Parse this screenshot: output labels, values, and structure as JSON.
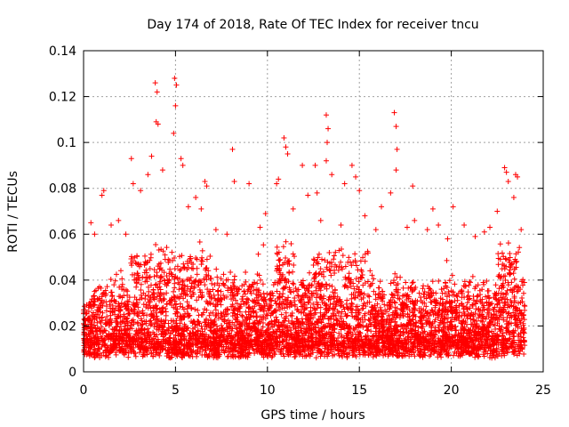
{
  "chart_data": {
    "type": "scatter",
    "title": "Day 174 of 2018, Rate Of TEC Index for receiver tncu",
    "xlabel": "GPS time / hours",
    "ylabel": "ROTI / TECUs",
    "xlim": [
      0,
      25
    ],
    "ylim": [
      0,
      0.14
    ],
    "xticks": [
      0,
      5,
      10,
      15,
      20,
      25
    ],
    "yticks": [
      0,
      0.02,
      0.04,
      0.06,
      0.08,
      0.1,
      0.12,
      0.14
    ],
    "xtick_labels": [
      "0",
      "5",
      "10",
      "15",
      "20",
      "25"
    ],
    "ytick_labels": [
      "0",
      "0.02",
      "0.04",
      "0.06",
      "0.08",
      "0.1",
      "0.12",
      "0.14"
    ],
    "grid": true,
    "marker": "+",
    "marker_color": "#ff0000",
    "data_range_x": [
      0,
      24
    ],
    "series": [
      {
        "points": [
          [
            3.9,
            0.126
          ],
          [
            4.0,
            0.122
          ],
          [
            4.95,
            0.128
          ],
          [
            5.05,
            0.125
          ],
          [
            5.0,
            0.116
          ],
          [
            4.9,
            0.104
          ],
          [
            3.95,
            0.109
          ],
          [
            4.05,
            0.108
          ],
          [
            3.7,
            0.094
          ],
          [
            2.6,
            0.093
          ],
          [
            5.3,
            0.093
          ],
          [
            5.4,
            0.09
          ],
          [
            1.1,
            0.079
          ],
          [
            1.0,
            0.077
          ],
          [
            2.7,
            0.082
          ],
          [
            3.1,
            0.079
          ],
          [
            3.5,
            0.086
          ],
          [
            4.3,
            0.088
          ],
          [
            6.6,
            0.083
          ],
          [
            6.7,
            0.081
          ],
          [
            8.1,
            0.097
          ],
          [
            8.2,
            0.083
          ],
          [
            9.0,
            0.082
          ],
          [
            10.5,
            0.082
          ],
          [
            10.6,
            0.084
          ],
          [
            10.9,
            0.102
          ],
          [
            11.0,
            0.098
          ],
          [
            11.1,
            0.095
          ],
          [
            11.9,
            0.09
          ],
          [
            12.2,
            0.077
          ],
          [
            12.6,
            0.09
          ],
          [
            12.7,
            0.078
          ],
          [
            13.2,
            0.112
          ],
          [
            13.3,
            0.106
          ],
          [
            13.25,
            0.1
          ],
          [
            13.2,
            0.092
          ],
          [
            13.5,
            0.086
          ],
          [
            14.2,
            0.082
          ],
          [
            14.6,
            0.09
          ],
          [
            14.8,
            0.085
          ],
          [
            15.0,
            0.079
          ],
          [
            16.2,
            0.072
          ],
          [
            16.7,
            0.078
          ],
          [
            16.9,
            0.113
          ],
          [
            17.0,
            0.107
          ],
          [
            17.05,
            0.097
          ],
          [
            17.0,
            0.088
          ],
          [
            17.9,
            0.081
          ],
          [
            18.0,
            0.066
          ],
          [
            19.0,
            0.071
          ],
          [
            19.3,
            0.064
          ],
          [
            20.1,
            0.072
          ],
          [
            20.7,
            0.064
          ],
          [
            22.1,
            0.063
          ],
          [
            22.5,
            0.07
          ],
          [
            22.9,
            0.089
          ],
          [
            23.0,
            0.087
          ],
          [
            23.1,
            0.083
          ],
          [
            23.5,
            0.086
          ],
          [
            23.6,
            0.085
          ],
          [
            23.4,
            0.076
          ],
          [
            0.4,
            0.065
          ],
          [
            0.6,
            0.06
          ],
          [
            1.5,
            0.064
          ],
          [
            1.9,
            0.066
          ],
          [
            2.3,
            0.06
          ],
          [
            5.7,
            0.072
          ],
          [
            6.1,
            0.076
          ],
          [
            6.4,
            0.071
          ],
          [
            7.2,
            0.062
          ],
          [
            7.8,
            0.06
          ],
          [
            9.6,
            0.063
          ],
          [
            9.9,
            0.069
          ],
          [
            11.4,
            0.071
          ],
          [
            12.9,
            0.066
          ],
          [
            14.0,
            0.064
          ],
          [
            15.3,
            0.068
          ],
          [
            15.9,
            0.062
          ],
          [
            17.6,
            0.063
          ],
          [
            18.7,
            0.062
          ],
          [
            19.8,
            0.058
          ],
          [
            21.3,
            0.059
          ],
          [
            21.8,
            0.061
          ],
          [
            23.8,
            0.062
          ]
        ]
      }
    ]
  }
}
